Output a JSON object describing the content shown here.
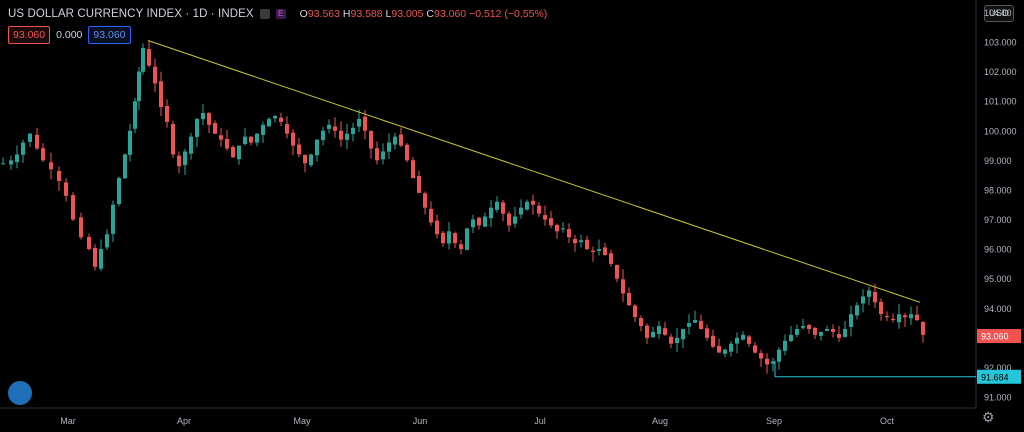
{
  "header": {
    "title": "US DOLLAR CURRENCY INDEX · 1D · INDEX",
    "badge_e": "E",
    "o_label": "O",
    "o_value": "93.563",
    "h_label": "H",
    "h_value": "93.588",
    "l_label": "L",
    "l_value": "93.005",
    "c_label": "C",
    "c_value": "93.060",
    "change": "−0.512 (−0.55%)"
  },
  "indicator_boxes": {
    "left": "93.060",
    "middle": "0.000",
    "right": "93.060"
  },
  "currency_button": "USD",
  "colors": {
    "up": "#26a69a",
    "down": "#ef5350",
    "trendline": "#c8c832",
    "support": "#26c6da",
    "background": "#000000"
  },
  "chart_data": {
    "type": "candlestick",
    "title": "US DOLLAR CURRENCY INDEX · 1D · INDEX",
    "ylim": [
      90.6,
      104.2
    ],
    "y_ticks": [
      "104.00",
      "103.000",
      "102.000",
      "101.000",
      "100.000",
      "99.000",
      "98.000",
      "97.000",
      "96.000",
      "95.000",
      "94.000",
      "93.000",
      "92.000",
      "91.000"
    ],
    "x_ticks": [
      "Mar",
      "Apr",
      "May",
      "Jun",
      "Jul",
      "Aug",
      "Sep",
      "Oct"
    ],
    "close_path": [
      [
        0,
        98.9
      ],
      [
        8,
        99.0
      ],
      [
        14,
        99.2
      ],
      [
        20,
        99.6
      ],
      [
        27,
        99.9
      ],
      [
        34,
        99.4
      ],
      [
        40,
        99.0
      ],
      [
        48,
        98.7
      ],
      [
        56,
        98.3
      ],
      [
        63,
        97.8
      ],
      [
        70,
        97.0
      ],
      [
        78,
        96.4
      ],
      [
        86,
        96.0
      ],
      [
        92,
        95.4
      ],
      [
        98,
        96.0
      ],
      [
        104,
        96.5
      ],
      [
        110,
        97.5
      ],
      [
        116,
        98.4
      ],
      [
        122,
        99.2
      ],
      [
        127,
        100.0
      ],
      [
        132,
        101.0
      ],
      [
        136,
        102.0
      ],
      [
        140,
        102.8
      ],
      [
        146,
        102.2
      ],
      [
        152,
        101.6
      ],
      [
        158,
        100.8
      ],
      [
        164,
        100.3
      ],
      [
        170,
        99.2
      ],
      [
        176,
        98.8
      ],
      [
        182,
        99.3
      ],
      [
        188,
        99.8
      ],
      [
        194,
        100.4
      ],
      [
        200,
        100.6
      ],
      [
        206,
        100.2
      ],
      [
        212,
        99.9
      ],
      [
        218,
        99.7
      ],
      [
        224,
        99.4
      ],
      [
        230,
        99.1
      ],
      [
        236,
        99.5
      ],
      [
        242,
        99.8
      ],
      [
        248,
        99.6
      ],
      [
        254,
        99.9
      ],
      [
        260,
        100.2
      ],
      [
        266,
        100.4
      ],
      [
        272,
        100.5
      ],
      [
        278,
        100.3
      ],
      [
        284,
        99.9
      ],
      [
        290,
        99.5
      ],
      [
        296,
        99.2
      ],
      [
        302,
        98.9
      ],
      [
        308,
        99.2
      ],
      [
        314,
        99.7
      ],
      [
        320,
        100.0
      ],
      [
        326,
        100.2
      ],
      [
        332,
        100.0
      ],
      [
        338,
        99.7
      ],
      [
        344,
        99.9
      ],
      [
        350,
        100.1
      ],
      [
        356,
        100.4
      ],
      [
        362,
        100.0
      ],
      [
        368,
        99.4
      ],
      [
        374,
        99.0
      ],
      [
        380,
        99.3
      ],
      [
        386,
        99.6
      ],
      [
        392,
        99.8
      ],
      [
        398,
        99.5
      ],
      [
        404,
        99.0
      ],
      [
        410,
        98.4
      ],
      [
        416,
        97.9
      ],
      [
        422,
        97.4
      ],
      [
        428,
        96.9
      ],
      [
        434,
        96.5
      ],
      [
        440,
        96.2
      ],
      [
        446,
        96.6
      ],
      [
        452,
        96.2
      ],
      [
        458,
        96.0
      ],
      [
        464,
        96.7
      ],
      [
        470,
        97.0
      ],
      [
        476,
        96.8
      ],
      [
        482,
        97.1
      ],
      [
        488,
        97.4
      ],
      [
        494,
        97.6
      ],
      [
        500,
        97.2
      ],
      [
        506,
        96.8
      ],
      [
        512,
        97.1
      ],
      [
        518,
        97.4
      ],
      [
        524,
        97.6
      ],
      [
        530,
        97.5
      ],
      [
        536,
        97.2
      ],
      [
        542,
        97.0
      ],
      [
        548,
        96.8
      ],
      [
        554,
        96.6
      ],
      [
        560,
        96.7
      ],
      [
        566,
        96.4
      ],
      [
        572,
        96.2
      ],
      [
        578,
        96.3
      ],
      [
        584,
        96.0
      ],
      [
        590,
        95.9
      ],
      [
        596,
        96.0
      ],
      [
        602,
        95.8
      ],
      [
        608,
        95.5
      ],
      [
        614,
        95.0
      ],
      [
        620,
        94.5
      ],
      [
        626,
        94.1
      ],
      [
        632,
        93.7
      ],
      [
        638,
        93.4
      ],
      [
        644,
        93.0
      ],
      [
        650,
        93.2
      ],
      [
        656,
        93.4
      ],
      [
        662,
        93.1
      ],
      [
        668,
        92.8
      ],
      [
        674,
        93.0
      ],
      [
        680,
        93.3
      ],
      [
        686,
        93.5
      ],
      [
        692,
        93.6
      ],
      [
        698,
        93.3
      ],
      [
        704,
        93.0
      ],
      [
        710,
        92.7
      ],
      [
        716,
        92.5
      ],
      [
        722,
        92.6
      ],
      [
        728,
        92.8
      ],
      [
        734,
        93.0
      ],
      [
        740,
        93.1
      ],
      [
        746,
        92.8
      ],
      [
        752,
        92.5
      ],
      [
        758,
        92.3
      ],
      [
        764,
        92.1
      ],
      [
        770,
        92.2
      ],
      [
        776,
        92.6
      ],
      [
        782,
        92.9
      ],
      [
        788,
        93.1
      ],
      [
        794,
        93.3
      ],
      [
        800,
        93.4
      ],
      [
        806,
        93.3
      ],
      [
        812,
        93.1
      ],
      [
        818,
        93.2
      ],
      [
        824,
        93.3
      ],
      [
        830,
        93.2
      ],
      [
        836,
        93.0
      ],
      [
        842,
        93.3
      ],
      [
        848,
        93.8
      ],
      [
        854,
        94.1
      ],
      [
        860,
        94.4
      ],
      [
        866,
        94.6
      ],
      [
        872,
        94.2
      ],
      [
        878,
        93.8
      ],
      [
        884,
        93.7
      ],
      [
        890,
        93.6
      ],
      [
        896,
        93.8
      ],
      [
        902,
        93.7
      ],
      [
        908,
        93.8
      ],
      [
        914,
        93.6
      ],
      [
        920,
        93.1
      ]
    ],
    "trendline": {
      "from": [
        148,
        103.05
      ],
      "to": [
        920,
        94.2
      ],
      "color": "#c8c832"
    },
    "support_line": {
      "from_x": 775,
      "value": 91.684,
      "color": "#26c6da"
    },
    "last_price": 93.06,
    "last_price_label": "93.060",
    "support_label": "91.684"
  }
}
